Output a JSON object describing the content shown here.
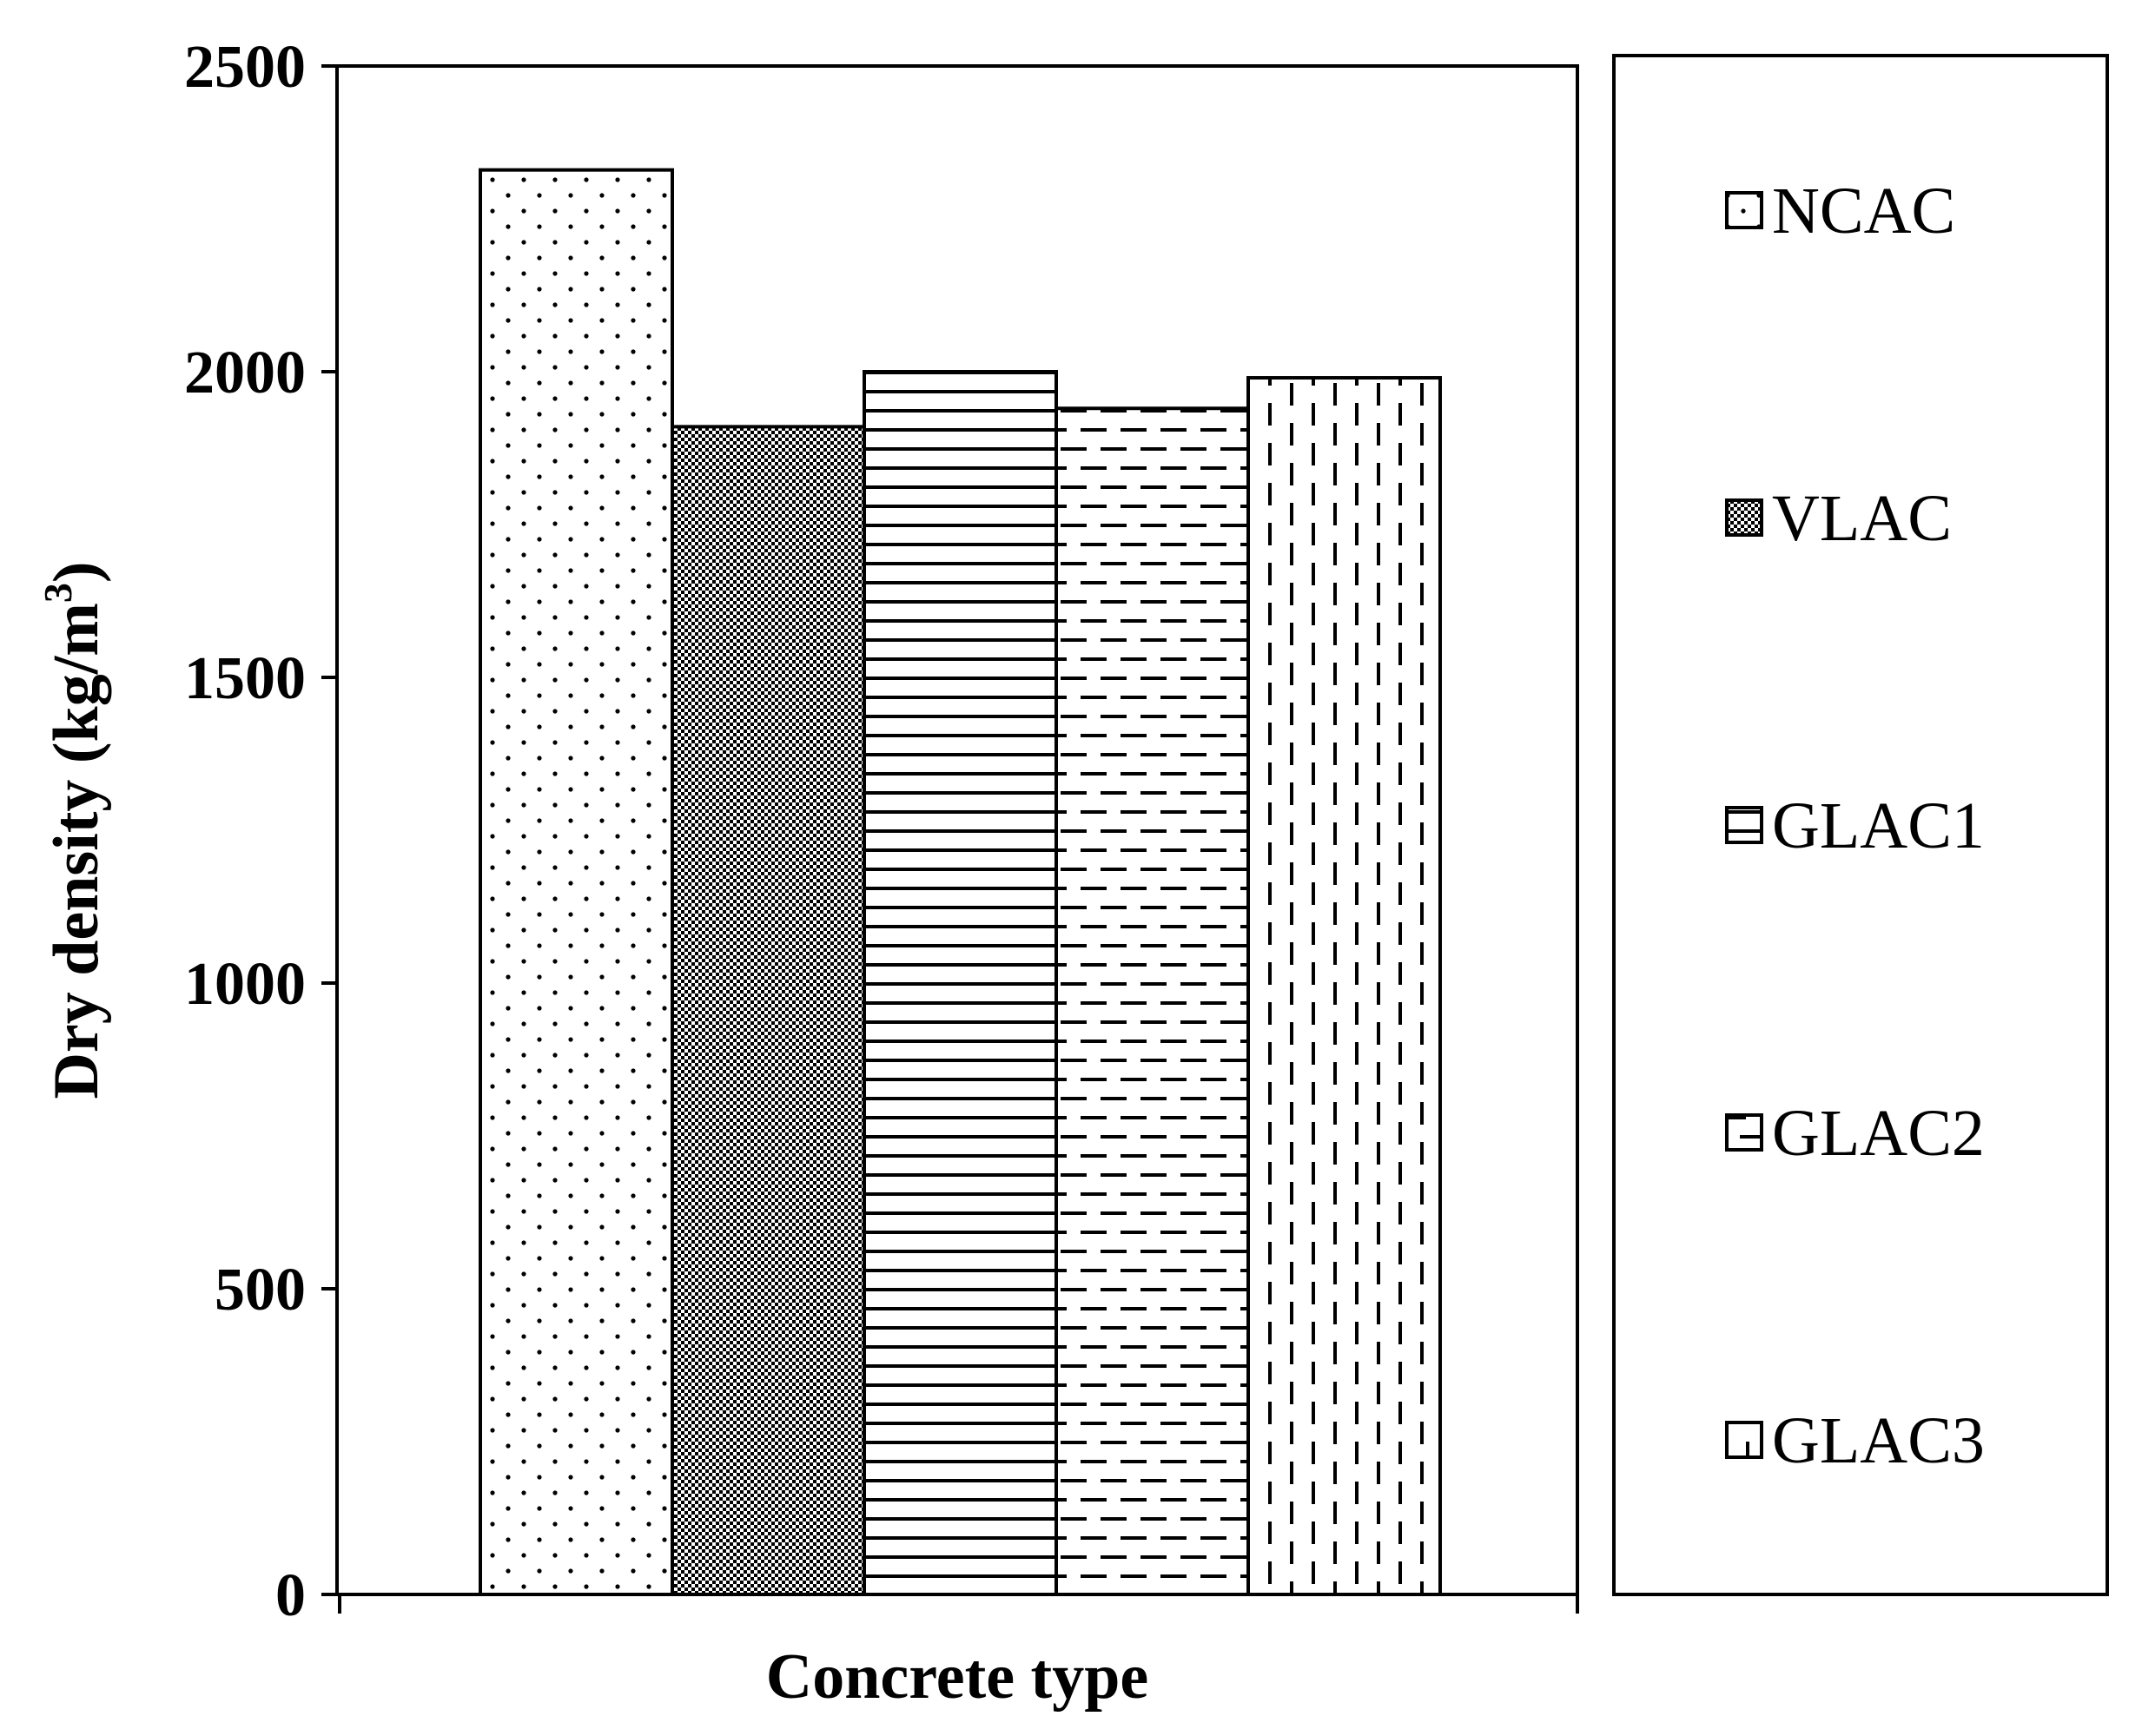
{
  "chart_data": {
    "type": "bar",
    "title": "",
    "xlabel": "Concrete type",
    "ylabel": "Dry density (kg/m",
    "ylabel_superscript": "3",
    "ylabel_close": ")",
    "ylim": [
      0,
      2500
    ],
    "yticks": [
      0,
      500,
      1000,
      1500,
      2000,
      2500
    ],
    "ytick_labels": [
      "0",
      "500",
      "1000",
      "1500",
      "2000",
      "2500"
    ],
    "grid": false,
    "legend_position": "right, outside plot",
    "series": [
      {
        "name": "NCAC",
        "value": 2330,
        "pattern": "dots"
      },
      {
        "name": "VLAC",
        "value": 1910,
        "pattern": "checker"
      },
      {
        "name": "GLAC1",
        "value": 2000,
        "pattern": "horizontal-lines"
      },
      {
        "name": "GLAC2",
        "value": 1940,
        "pattern": "horizontal-dashes"
      },
      {
        "name": "GLAC3",
        "value": 1990,
        "pattern": "vertical-dashes"
      }
    ],
    "colors": {
      "stroke": "#000000",
      "fill": "#ffffff",
      "pattern": "#000000"
    }
  }
}
